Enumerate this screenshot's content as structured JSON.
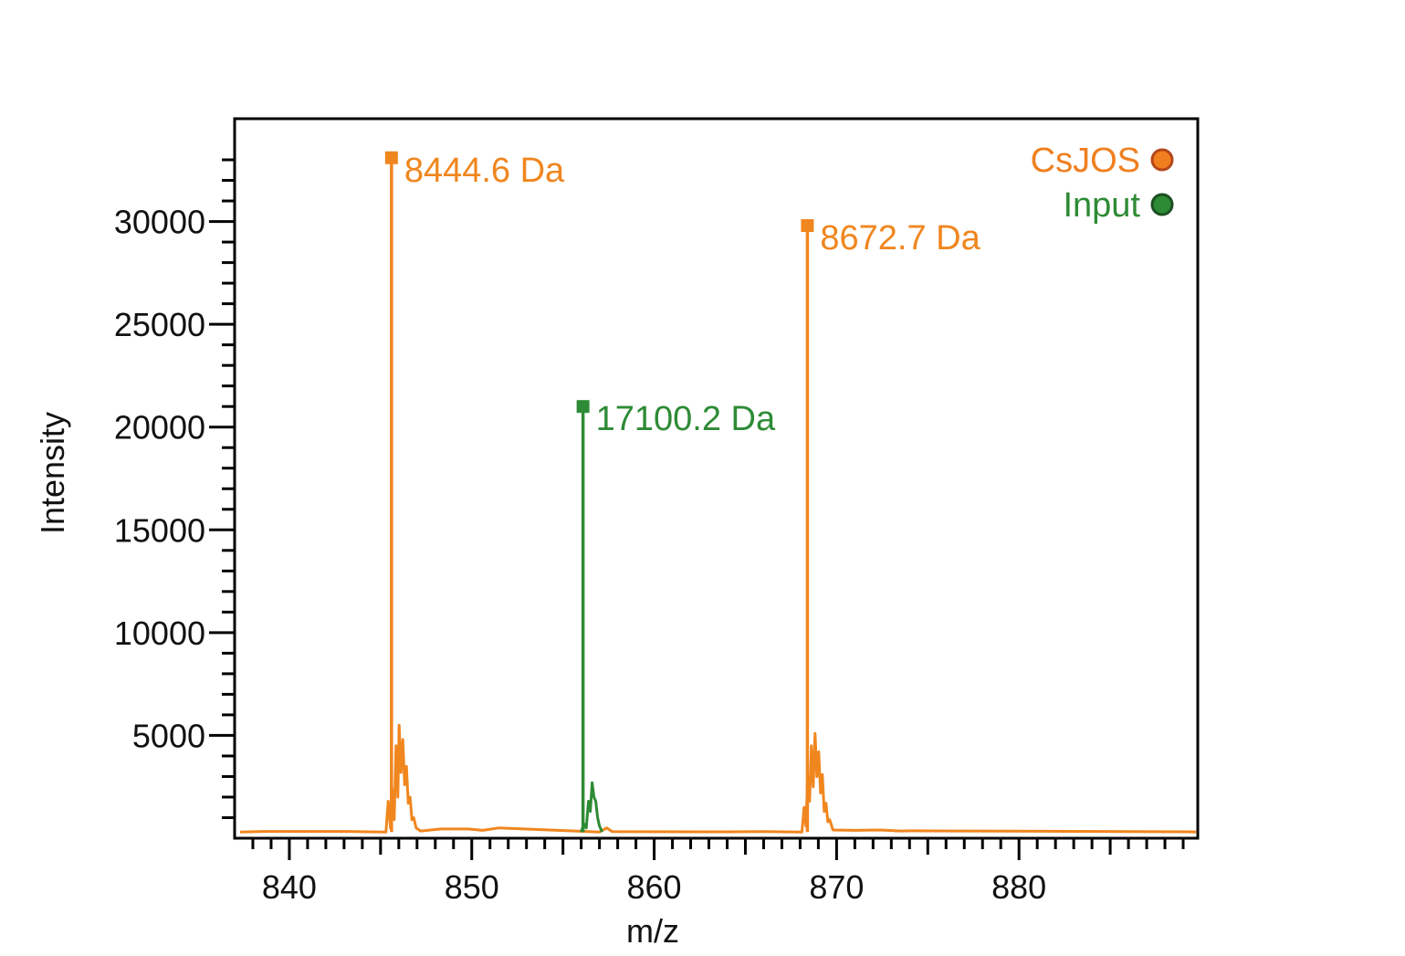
{
  "chart_data": {
    "type": "line",
    "xlabel": "m/z",
    "ylabel": "Intensity",
    "xlim": [
      837.0,
      889.8
    ],
    "ylim": [
      0,
      35000
    ],
    "x_major_ticks": [
      840,
      850,
      860,
      870,
      880
    ],
    "x_major_tick_labels": [
      "840",
      "850",
      "860",
      "870",
      "880"
    ],
    "y_major_ticks": [
      5000,
      10000,
      15000,
      20000,
      25000,
      30000
    ],
    "y_major_tick_labels": [
      "5000",
      "10000",
      "15000",
      "20000",
      "25000",
      "30000"
    ],
    "grid": false,
    "legend": {
      "position": "top-right",
      "entries": [
        {
          "label": "CsJOS",
          "color": "#f07f1f",
          "marker_edge": "#b5461a"
        },
        {
          "label": "Input",
          "color": "#2e8b35",
          "marker_edge": "#1d4f22"
        }
      ]
    },
    "series": [
      {
        "name": "CsJOS",
        "color": "#f0861e",
        "baseline": 300,
        "spectrum": [
          {
            "x": 838.5,
            "y": 330
          },
          {
            "x": 843.2,
            "y": 330
          },
          {
            "x": 845.3,
            "y": 300
          },
          {
            "x": 845.42,
            "y": 1800
          },
          {
            "x": 845.55,
            "y": 500
          },
          {
            "x": 845.62,
            "y": 2500
          },
          {
            "x": 845.75,
            "y": 900
          },
          {
            "x": 845.85,
            "y": 4500
          },
          {
            "x": 845.95,
            "y": 2000
          },
          {
            "x": 846.02,
            "y": 5500
          },
          {
            "x": 846.12,
            "y": 3200
          },
          {
            "x": 846.22,
            "y": 4800
          },
          {
            "x": 846.32,
            "y": 2600
          },
          {
            "x": 846.42,
            "y": 3500
          },
          {
            "x": 846.52,
            "y": 1700
          },
          {
            "x": 846.62,
            "y": 2000
          },
          {
            "x": 846.72,
            "y": 900
          },
          {
            "x": 846.82,
            "y": 1000
          },
          {
            "x": 846.95,
            "y": 500
          },
          {
            "x": 847.2,
            "y": 350
          },
          {
            "x": 848.3,
            "y": 450
          },
          {
            "x": 849.8,
            "y": 450
          },
          {
            "x": 850.6,
            "y": 380
          },
          {
            "x": 851.5,
            "y": 500
          },
          {
            "x": 857.0,
            "y": 300
          },
          {
            "x": 857.4,
            "y": 500
          },
          {
            "x": 857.7,
            "y": 320
          },
          {
            "x": 864.0,
            "y": 310
          },
          {
            "x": 866.0,
            "y": 320
          },
          {
            "x": 868.1,
            "y": 300
          },
          {
            "x": 868.22,
            "y": 1500
          },
          {
            "x": 868.32,
            "y": 600
          },
          {
            "x": 868.42,
            "y": 3000
          },
          {
            "x": 868.52,
            "y": 1800
          },
          {
            "x": 868.62,
            "y": 4500
          },
          {
            "x": 868.72,
            "y": 2500
          },
          {
            "x": 868.82,
            "y": 5100
          },
          {
            "x": 868.92,
            "y": 3000
          },
          {
            "x": 869.02,
            "y": 4200
          },
          {
            "x": 869.12,
            "y": 2200
          },
          {
            "x": 869.22,
            "y": 3100
          },
          {
            "x": 869.32,
            "y": 1300
          },
          {
            "x": 869.42,
            "y": 1700
          },
          {
            "x": 869.52,
            "y": 800
          },
          {
            "x": 869.62,
            "y": 900
          },
          {
            "x": 869.8,
            "y": 400
          },
          {
            "x": 871.0,
            "y": 380
          },
          {
            "x": 872.4,
            "y": 400
          },
          {
            "x": 873.5,
            "y": 350
          },
          {
            "x": 874.2,
            "y": 360
          },
          {
            "x": 889.5,
            "y": 310
          }
        ],
        "annotated_peaks": [
          {
            "x": 845.6,
            "y": 33100,
            "label": "8444.6 Da"
          },
          {
            "x": 868.4,
            "y": 29800,
            "label": "8672.7 Da"
          }
        ]
      },
      {
        "name": "Input",
        "color": "#2e8b35",
        "baseline": 300,
        "spectrum": [
          {
            "x": 856.0,
            "y": 300
          },
          {
            "x": 856.15,
            "y": 700
          },
          {
            "x": 856.28,
            "y": 500
          },
          {
            "x": 856.4,
            "y": 1800
          },
          {
            "x": 856.5,
            "y": 1300
          },
          {
            "x": 856.6,
            "y": 2700
          },
          {
            "x": 856.7,
            "y": 2000
          },
          {
            "x": 856.8,
            "y": 1800
          },
          {
            "x": 856.9,
            "y": 1000
          },
          {
            "x": 857.0,
            "y": 600
          },
          {
            "x": 857.15,
            "y": 300
          }
        ],
        "annotated_peaks": [
          {
            "x": 856.1,
            "y": 21000,
            "label": "17100.2 Da"
          }
        ]
      }
    ]
  }
}
